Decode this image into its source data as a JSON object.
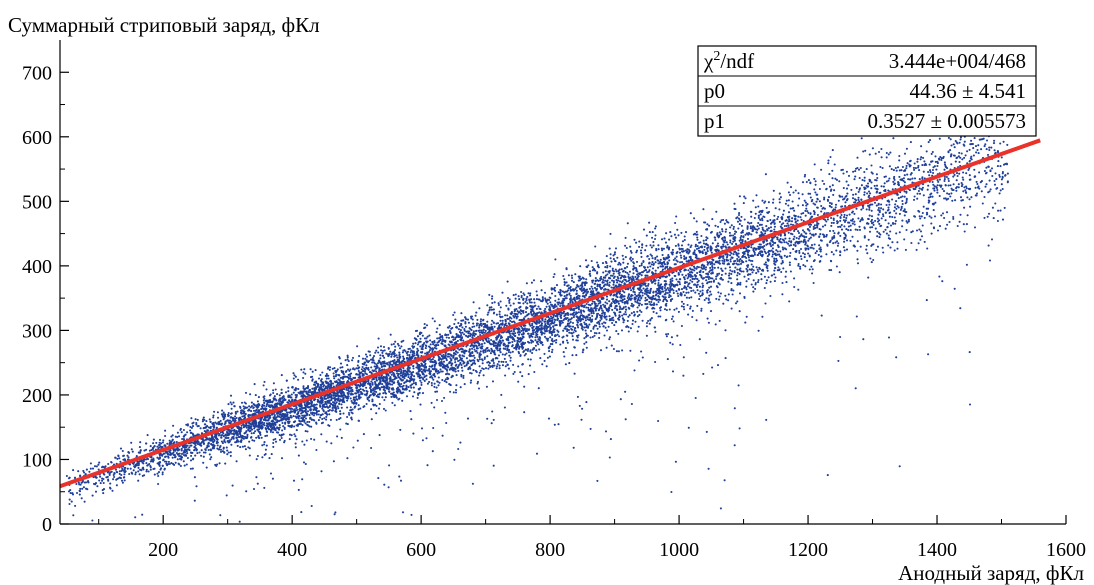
{
  "chart_data": {
    "type": "scatter",
    "title": "",
    "ylabel": "Суммарный стриповый заряд, фКл",
    "xlabel": "Анодный заряд, фКл",
    "xlim": [
      40,
      1600
    ],
    "ylim": [
      0,
      750
    ],
    "x_ticks": [
      200,
      400,
      600,
      800,
      1000,
      1200,
      1400,
      1600
    ],
    "y_ticks": [
      0,
      100,
      200,
      300,
      400,
      500,
      600,
      700
    ],
    "grid": false,
    "series": [
      {
        "kind": "scatter-cloud",
        "color": "#1f3f9a",
        "approx_points": 9000,
        "description_x_range": [
          50,
          1510
        ],
        "trend": {
          "p0": 40,
          "p1": 0.35
        },
        "x": [
          60,
          120,
          180,
          240,
          300,
          360,
          420,
          480,
          540,
          600,
          660,
          720,
          780,
          840,
          900,
          960,
          1020,
          1080,
          1140,
          1200,
          1260,
          1320,
          1380,
          1440,
          1500
        ],
        "y": [
          65,
          85,
          110,
          125,
          150,
          168,
          190,
          210,
          225,
          250,
          272,
          290,
          310,
          335,
          352,
          375,
          395,
          415,
          440,
          455,
          480,
          500,
          520,
          540,
          560
        ]
      },
      {
        "kind": "fit-line",
        "color": "#e8322a",
        "x": [
          40,
          1560
        ],
        "y": [
          58.47,
          594.57
        ]
      }
    ],
    "stats_box": {
      "rows": [
        {
          "label": "χ",
          "sup": "2",
          "suffix": "/ndf",
          "value": "3.444e+004/468"
        },
        {
          "label": "p0",
          "sup": "",
          "suffix": "",
          "value": "44.36 ± 4.541"
        },
        {
          "label": "p1",
          "sup": "",
          "suffix": "",
          "value": "0.3527 ± 0.005573"
        }
      ]
    }
  }
}
